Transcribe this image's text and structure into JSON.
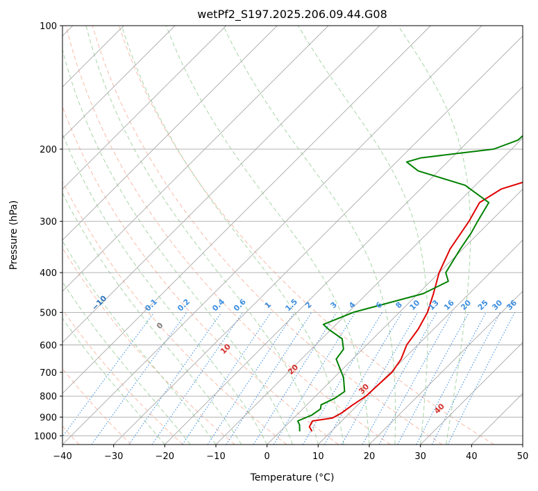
{
  "chart_data": {
    "type": "line",
    "subtype": "skew-t log-p diagram",
    "title": "wetPf2_S197.2025.206.09.44.G08",
    "xlabel": "Temperature (°C)",
    "ylabel": "Pressure (hPa)",
    "xlim": [
      -40,
      50
    ],
    "ylim": [
      1050,
      100
    ],
    "y_scale": "log",
    "grid": true,
    "x_ticks": [
      "−40",
      "−30",
      "−20",
      "−10",
      "0",
      "10",
      "20",
      "30",
      "40",
      "50"
    ],
    "y_ticks": [
      "100",
      "200",
      "300",
      "400",
      "500",
      "600",
      "700",
      "800",
      "900",
      "1000"
    ],
    "series": [
      {
        "color": "#e00000",
        "points": [
          [
            6.2,
            975
          ],
          [
            4.8,
            950
          ],
          [
            4.3,
            920
          ],
          [
            7.6,
            905
          ],
          [
            8.4,
            880
          ],
          [
            9.0,
            840
          ],
          [
            9.9,
            800
          ],
          [
            10.0,
            760
          ],
          [
            10.3,
            700
          ],
          [
            9.5,
            650
          ],
          [
            7.8,
            600
          ],
          [
            7.0,
            550
          ],
          [
            5.5,
            500
          ],
          [
            3.0,
            450
          ],
          [
            0.0,
            400
          ],
          [
            -2.5,
            350
          ],
          [
            -4.2,
            300
          ],
          [
            -5.8,
            270
          ],
          [
            -4.2,
            250
          ],
          [
            -1.0,
            240
          ],
          [
            4.0,
            230
          ],
          [
            10.0,
            220
          ],
          [
            13.0,
            205
          ],
          [
            13.0,
            190
          ],
          [
            14.0,
            175
          ],
          [
            15.0,
            160
          ],
          [
            17.0,
            145
          ],
          [
            18.6,
            130
          ],
          [
            21.0,
            120
          ],
          [
            23.0,
            110
          ],
          [
            24.0,
            100
          ]
        ]
      },
      {
        "color": "#008000",
        "points": [
          [
            3.8,
            975
          ],
          [
            2.5,
            940
          ],
          [
            1.4,
            920
          ],
          [
            3.0,
            890
          ],
          [
            3.5,
            860
          ],
          [
            2.8,
            840
          ],
          [
            4.2,
            810
          ],
          [
            4.8,
            780
          ],
          [
            1.8,
            720
          ],
          [
            -3.2,
            650
          ],
          [
            -3.7,
            615
          ],
          [
            -6.0,
            580
          ],
          [
            -10.5,
            550
          ],
          [
            -12.5,
            535
          ],
          [
            -9.0,
            500
          ],
          [
            1.0,
            450
          ],
          [
            3.5,
            420
          ],
          [
            1.3,
            400
          ],
          [
            -0.5,
            350
          ],
          [
            -1.5,
            320
          ],
          [
            -2.5,
            300
          ],
          [
            -4.0,
            270
          ],
          [
            -12.0,
            245
          ],
          [
            -24.0,
            226
          ],
          [
            -28.0,
            215
          ],
          [
            -26.0,
            210
          ],
          [
            -13.5,
            200
          ],
          [
            -10.5,
            190
          ],
          [
            -10.0,
            160
          ],
          [
            -8.5,
            140
          ],
          [
            -5.0,
            120
          ],
          [
            -2.0,
            105
          ],
          [
            -2.0,
            100
          ]
        ]
      }
    ],
    "dry_adiabat_labels": [
      "−100",
      "−90",
      "−80",
      "−70",
      "−60",
      "−50",
      "−40",
      "−30",
      "−20",
      "−10",
      "0",
      "10",
      "20",
      "30",
      "40"
    ],
    "mixing_ratio_labels": [
      "0.1",
      "0.2",
      "0.4",
      "0.6",
      "1",
      "1.5",
      "2",
      "3",
      "4",
      "6",
      "8",
      "10",
      "13",
      "16",
      "20",
      "25",
      "30",
      "36"
    ],
    "colors": {
      "temperature": "#e00000",
      "dewpoint": "#008000",
      "isotherm": "#a8a8a8",
      "isobar": "#a8a8a8",
      "dry_adiabat": "#f5a48a",
      "moist_adiabat": "#9ccf9c",
      "mixing_ratio": "#3f8fe0",
      "dry_label_neg": "#2a70b8",
      "dry_label_pos": "#d42f2f",
      "dry_label_zero": "#808080"
    }
  }
}
